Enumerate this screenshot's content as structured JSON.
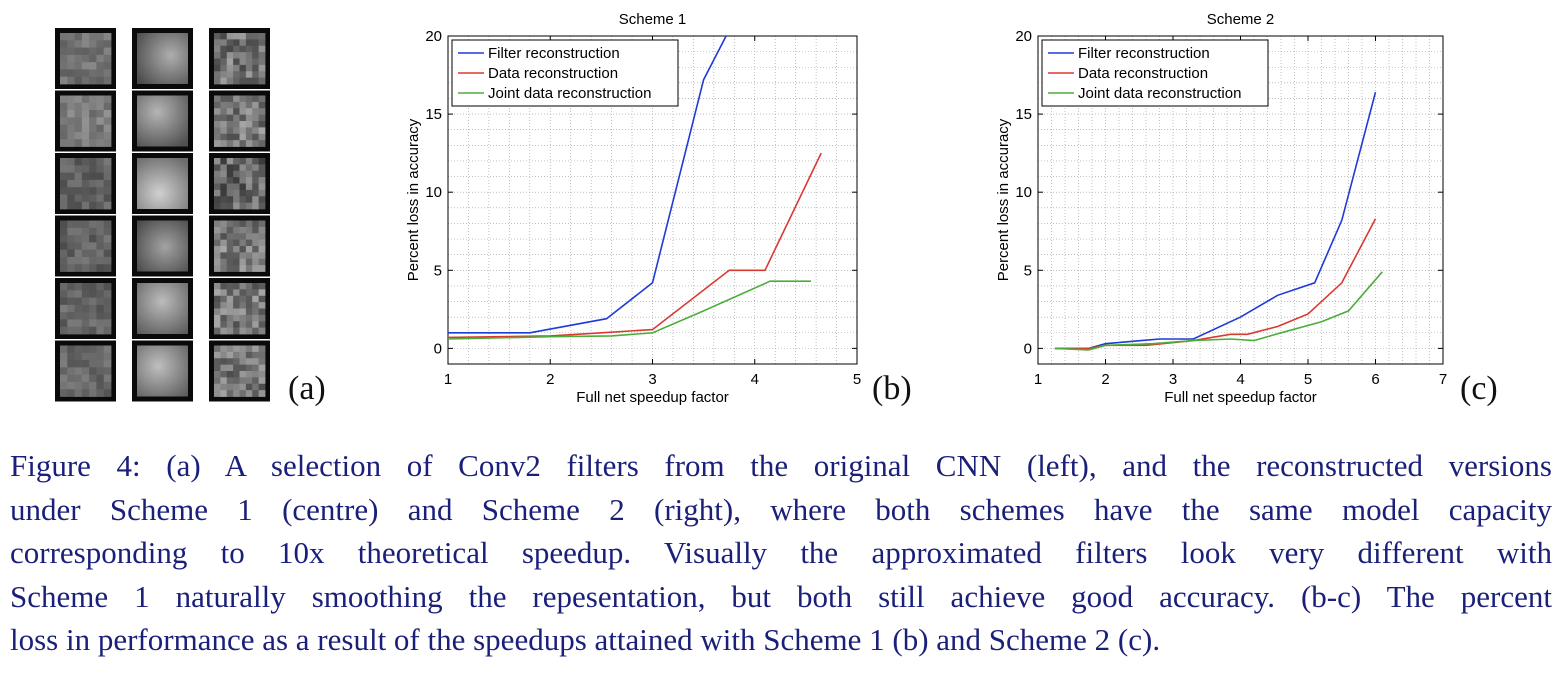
{
  "figure": {
    "panel_labels": [
      "(a)",
      "(b)",
      "(c)"
    ],
    "filters": {
      "columns": [
        "original",
        "scheme1",
        "scheme2"
      ],
      "rows": 6
    }
  },
  "chart_data": [
    {
      "type": "line",
      "title": "Scheme 1",
      "xlabel": "Full net speedup factor",
      "ylabel": "Percent loss in accuracy",
      "xlim": [
        1,
        5
      ],
      "ylim": [
        -1,
        20
      ],
      "xticks": [
        1,
        2,
        3,
        4,
        5
      ],
      "yticks": [
        0,
        5,
        10,
        15,
        20
      ],
      "grid": true,
      "legend_position": "top-left",
      "series": [
        {
          "name": "Filter reconstruction",
          "color": "#1f3bd6",
          "x": [
            1.0,
            1.8,
            2.55,
            3.0,
            3.5,
            3.72
          ],
          "y": [
            1.0,
            1.0,
            1.9,
            4.2,
            17.2,
            20.0
          ]
        },
        {
          "name": "Data reconstruction",
          "color": "#d93a30",
          "x": [
            1.0,
            2.0,
            2.5,
            3.0,
            3.75,
            4.1,
            4.65
          ],
          "y": [
            0.7,
            0.8,
            1.0,
            1.2,
            5.0,
            5.0,
            12.5
          ]
        },
        {
          "name": "Joint data reconstruction",
          "color": "#4cae3a",
          "x": [
            1.0,
            2.0,
            2.6,
            3.0,
            3.5,
            4.15,
            4.55
          ],
          "y": [
            0.6,
            0.75,
            0.8,
            1.0,
            2.4,
            4.3,
            4.3
          ]
        }
      ]
    },
    {
      "type": "line",
      "title": "Scheme 2",
      "xlabel": "Full net speedup factor",
      "ylabel": "Percent loss in accuracy",
      "xlim": [
        1,
        7
      ],
      "ylim": [
        -1,
        20
      ],
      "xticks": [
        1,
        2,
        3,
        4,
        5,
        6,
        7
      ],
      "yticks": [
        0,
        5,
        10,
        15,
        20
      ],
      "grid": true,
      "legend_position": "top-left",
      "series": [
        {
          "name": "Filter reconstruction",
          "color": "#1f3bd6",
          "x": [
            1.25,
            1.75,
            2.0,
            2.8,
            3.3,
            4.0,
            4.55,
            5.1,
            5.5,
            6.0
          ],
          "y": [
            0.0,
            0.0,
            0.3,
            0.6,
            0.6,
            2.0,
            3.4,
            4.2,
            8.2,
            16.4
          ]
        },
        {
          "name": "Data reconstruction",
          "color": "#d93a30",
          "x": [
            1.25,
            1.75,
            2.0,
            2.6,
            3.3,
            3.85,
            4.1,
            4.55,
            5.0,
            5.5,
            6.0
          ],
          "y": [
            0.0,
            0.0,
            0.2,
            0.2,
            0.5,
            0.9,
            0.9,
            1.4,
            2.2,
            4.2,
            8.3
          ]
        },
        {
          "name": "Joint data reconstruction",
          "color": "#4cae3a",
          "x": [
            1.25,
            1.75,
            2.0,
            2.7,
            3.3,
            3.85,
            4.2,
            4.6,
            5.2,
            5.6,
            6.1
          ],
          "y": [
            0.0,
            -0.1,
            0.2,
            0.3,
            0.5,
            0.6,
            0.5,
            1.0,
            1.7,
            2.4,
            4.9
          ]
        }
      ]
    }
  ],
  "caption": {
    "figure_number": "Figure 4:",
    "lines": [
      "(a) A selection of Conv2 filters from the original CNN (left), and the reconstructed versions",
      "under Scheme 1 (centre) and Scheme 2 (right), where both schemes have the same model capacity",
      "corresponding to 10x theoretical speedup.  Visually the approximated filters look very different with",
      "Scheme 1 naturally smoothing the repesentation, but both still achieve good accuracy. (b-c) The percent",
      "loss in performance as a result of the speedups attained with Scheme 1 (b) and Scheme 2 (c)."
    ]
  }
}
